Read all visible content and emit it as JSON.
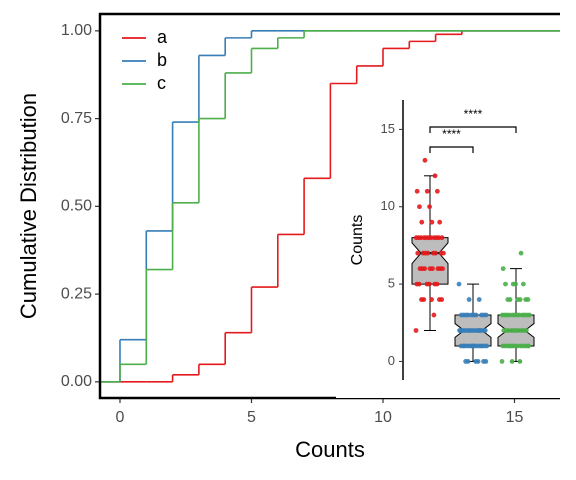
{
  "chart_data": [
    {
      "type": "step",
      "x_label": "Counts",
      "y_label": "Cumulative Distribution",
      "x": [
        0,
        1,
        2,
        3,
        4,
        5,
        6,
        7,
        8,
        9,
        10,
        11,
        12,
        13
      ],
      "series": [
        {
          "name": "a",
          "color": "#e41a1c",
          "values": [
            0,
            0,
            0.02,
            0.05,
            0.14,
            0.27,
            0.42,
            0.58,
            0.85,
            0.9,
            0.95,
            0.97,
            0.99,
            1
          ]
        },
        {
          "name": "b",
          "color": "#377eb8",
          "values": [
            0.12,
            0.43,
            0.74,
            0.93,
            0.98,
            1,
            1,
            1,
            1,
            1,
            1,
            1,
            1,
            1
          ]
        },
        {
          "name": "c",
          "color": "#4daf4a",
          "values": [
            0.05,
            0.32,
            0.51,
            0.75,
            0.88,
            0.95,
            0.98,
            1,
            1,
            1,
            1,
            1,
            1,
            1
          ]
        }
      ],
      "xlim": [
        -0.76,
        16.73
      ],
      "ylim": [
        -0.046,
        1.048
      ],
      "xticks": [
        0,
        5,
        10,
        15
      ],
      "yticks": [
        {
          "value": 0,
          "label": "0.00"
        },
        {
          "value": 0.25,
          "label": "0.25"
        },
        {
          "value": 0.5,
          "label": "0.50"
        },
        {
          "value": 0.75,
          "label": "0.75"
        },
        {
          "value": 1,
          "label": "1.00"
        }
      ],
      "legend": "top-left"
    },
    {
      "type": "box",
      "y_label": "Counts",
      "series": [
        {
          "name": "a",
          "color": "#e41a1c",
          "whisker_low": 2,
          "q1": 5,
          "median": 7,
          "q3": 8,
          "whisker_high": 12,
          "points": [
            2,
            3,
            4,
            4,
            4,
            4,
            4,
            5,
            5,
            5,
            5,
            5,
            5,
            6,
            6,
            6,
            6,
            6,
            6,
            6,
            6,
            7,
            7,
            7,
            7,
            7,
            7,
            7,
            7,
            8,
            8,
            8,
            8,
            8,
            8,
            8,
            8,
            8,
            8,
            8,
            9,
            9,
            9,
            10,
            10,
            11,
            11,
            11,
            12,
            13
          ]
        },
        {
          "name": "b",
          "color": "#377eb8",
          "whisker_low": 0,
          "q1": 1,
          "median": 2,
          "q3": 3,
          "whisker_high": 5,
          "points": [
            0,
            0,
            0,
            0,
            0,
            0,
            1,
            1,
            1,
            1,
            1,
            1,
            1,
            1,
            1,
            1,
            1,
            1,
            1,
            1,
            1,
            2,
            2,
            2,
            2,
            2,
            2,
            2,
            2,
            2,
            2,
            2,
            2,
            2,
            2,
            2,
            2,
            3,
            3,
            3,
            3,
            3,
            3,
            3,
            3,
            3,
            3,
            4,
            4,
            5
          ]
        },
        {
          "name": "c",
          "color": "#4daf4a",
          "whisker_low": 0,
          "q1": 1,
          "median": 2,
          "q3": 3,
          "whisker_high": 6,
          "points": [
            0,
            0,
            0,
            1,
            1,
            1,
            1,
            1,
            1,
            1,
            1,
            1,
            1,
            1,
            1,
            1,
            2,
            2,
            2,
            2,
            2,
            2,
            2,
            2,
            2,
            2,
            3,
            3,
            3,
            3,
            3,
            3,
            3,
            3,
            3,
            3,
            3,
            3,
            4,
            4,
            4,
            4,
            4,
            4,
            5,
            5,
            5,
            5,
            6,
            7
          ]
        }
      ],
      "ylim": [
        -1.2,
        16.9
      ],
      "yticks": [
        0,
        5,
        10,
        15
      ],
      "annotations": [
        "****",
        "****"
      ]
    }
  ]
}
